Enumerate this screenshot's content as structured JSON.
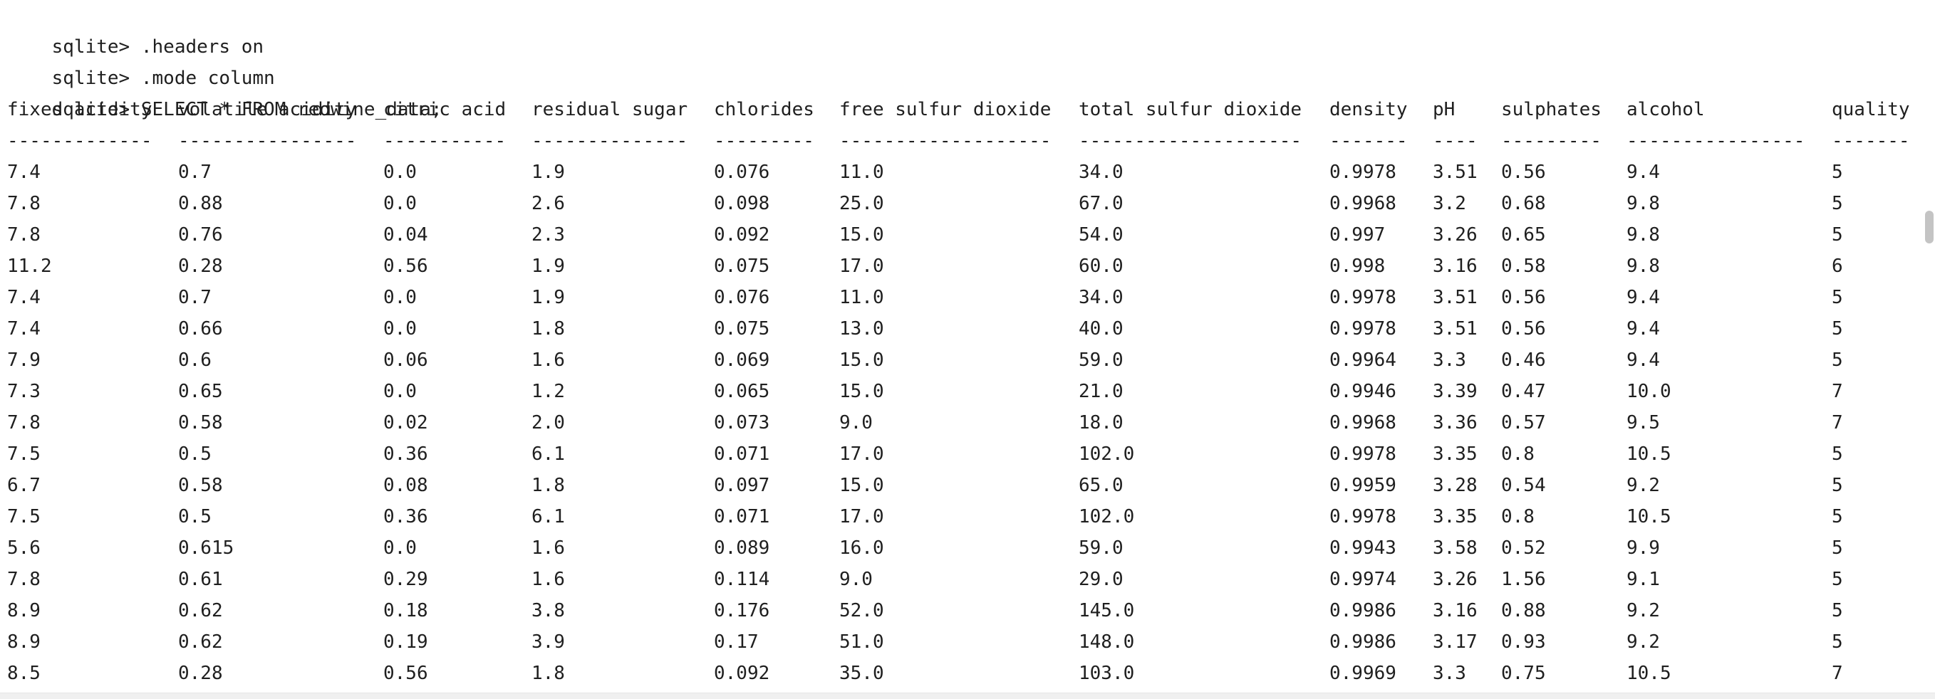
{
  "terminal": {
    "prompt": "sqlite> ",
    "commands": [
      ".headers on",
      ".mode column",
      "SELECT * FROM redwine_data;"
    ]
  },
  "table": {
    "columns": [
      "fixed acidity",
      "volatile acidity",
      "citric acid",
      "residual sugar",
      "chlorides",
      "free sulfur dioxide",
      "total sulfur dioxide",
      "density",
      "pH",
      "sulphates",
      "alcohol",
      "quality"
    ],
    "separators": [
      "-------------",
      "----------------",
      "-----------",
      "--------------",
      "---------",
      "-------------------",
      "--------------------",
      "-------",
      "----",
      "---------",
      "----------------",
      "-------"
    ],
    "rows": [
      [
        "7.4",
        "0.7",
        "0.0",
        "1.9",
        "0.076",
        "11.0",
        "34.0",
        "0.9978",
        "3.51",
        "0.56",
        "9.4",
        "5"
      ],
      [
        "7.8",
        "0.88",
        "0.0",
        "2.6",
        "0.098",
        "25.0",
        "67.0",
        "0.9968",
        "3.2",
        "0.68",
        "9.8",
        "5"
      ],
      [
        "7.8",
        "0.76",
        "0.04",
        "2.3",
        "0.092",
        "15.0",
        "54.0",
        "0.997",
        "3.26",
        "0.65",
        "9.8",
        "5"
      ],
      [
        "11.2",
        "0.28",
        "0.56",
        "1.9",
        "0.075",
        "17.0",
        "60.0",
        "0.998",
        "3.16",
        "0.58",
        "9.8",
        "6"
      ],
      [
        "7.4",
        "0.7",
        "0.0",
        "1.9",
        "0.076",
        "11.0",
        "34.0",
        "0.9978",
        "3.51",
        "0.56",
        "9.4",
        "5"
      ],
      [
        "7.4",
        "0.66",
        "0.0",
        "1.8",
        "0.075",
        "13.0",
        "40.0",
        "0.9978",
        "3.51",
        "0.56",
        "9.4",
        "5"
      ],
      [
        "7.9",
        "0.6",
        "0.06",
        "1.6",
        "0.069",
        "15.0",
        "59.0",
        "0.9964",
        "3.3",
        "0.46",
        "9.4",
        "5"
      ],
      [
        "7.3",
        "0.65",
        "0.0",
        "1.2",
        "0.065",
        "15.0",
        "21.0",
        "0.9946",
        "3.39",
        "0.47",
        "10.0",
        "7"
      ],
      [
        "7.8",
        "0.58",
        "0.02",
        "2.0",
        "0.073",
        "9.0",
        "18.0",
        "0.9968",
        "3.36",
        "0.57",
        "9.5",
        "7"
      ],
      [
        "7.5",
        "0.5",
        "0.36",
        "6.1",
        "0.071",
        "17.0",
        "102.0",
        "0.9978",
        "3.35",
        "0.8",
        "10.5",
        "5"
      ],
      [
        "6.7",
        "0.58",
        "0.08",
        "1.8",
        "0.097",
        "15.0",
        "65.0",
        "0.9959",
        "3.28",
        "0.54",
        "9.2",
        "5"
      ],
      [
        "7.5",
        "0.5",
        "0.36",
        "6.1",
        "0.071",
        "17.0",
        "102.0",
        "0.9978",
        "3.35",
        "0.8",
        "10.5",
        "5"
      ],
      [
        "5.6",
        "0.615",
        "0.0",
        "1.6",
        "0.089",
        "16.0",
        "59.0",
        "0.9943",
        "3.58",
        "0.52",
        "9.9",
        "5"
      ],
      [
        "7.8",
        "0.61",
        "0.29",
        "1.6",
        "0.114",
        "9.0",
        "29.0",
        "0.9974",
        "3.26",
        "1.56",
        "9.1",
        "5"
      ],
      [
        "8.9",
        "0.62",
        "0.18",
        "3.8",
        "0.176",
        "52.0",
        "145.0",
        "0.9986",
        "3.16",
        "0.88",
        "9.2",
        "5"
      ],
      [
        "8.9",
        "0.62",
        "0.19",
        "3.9",
        "0.17",
        "51.0",
        "148.0",
        "0.9986",
        "3.17",
        "0.93",
        "9.2",
        "5"
      ],
      [
        "8.5",
        "0.28",
        "0.56",
        "1.8",
        "0.092",
        "35.0",
        "103.0",
        "0.9969",
        "3.3",
        "0.75",
        "10.5",
        "7"
      ]
    ]
  }
}
